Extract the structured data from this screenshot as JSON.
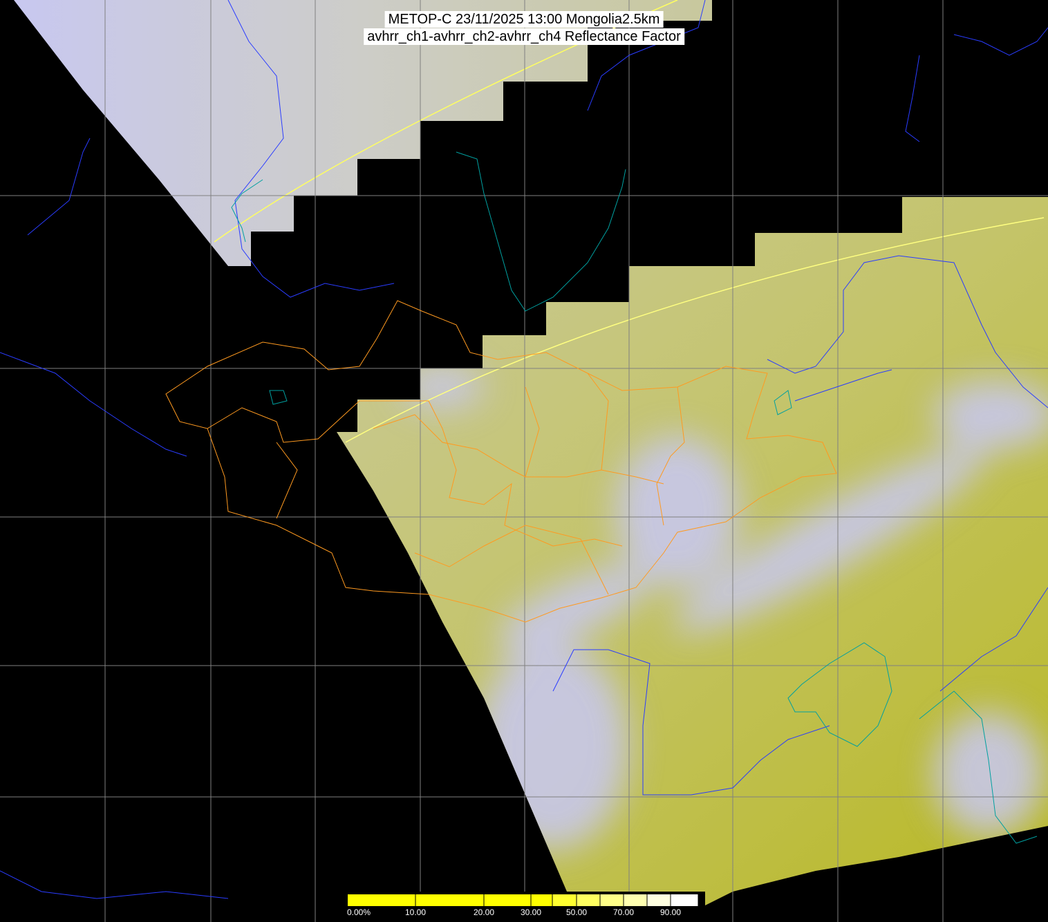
{
  "title": {
    "line1": "METOP-C 23/11/2025 13:00 Mongolia2.5km",
    "line2": "avhrr_ch1-avhrr_ch2-avhrr_ch4 Reflectance Factor"
  },
  "colorbar": {
    "labels": [
      "0.00%",
      "10.00",
      "20.00",
      "30.00",
      "50.00",
      "70.00",
      "90.00"
    ],
    "colors": [
      "#ffff00",
      "#ffff40",
      "#ffff90",
      "#ffffd0",
      "#ffffff"
    ]
  },
  "colors": {
    "background": "#000000",
    "cloud": "#c8c8f4",
    "land": "#c8c86c",
    "grid": "#808080",
    "country_border": "#2a3cff",
    "province_border": "#ff9a20",
    "coastline": "#00a0a0",
    "swath_edge": "#ffff60"
  }
}
